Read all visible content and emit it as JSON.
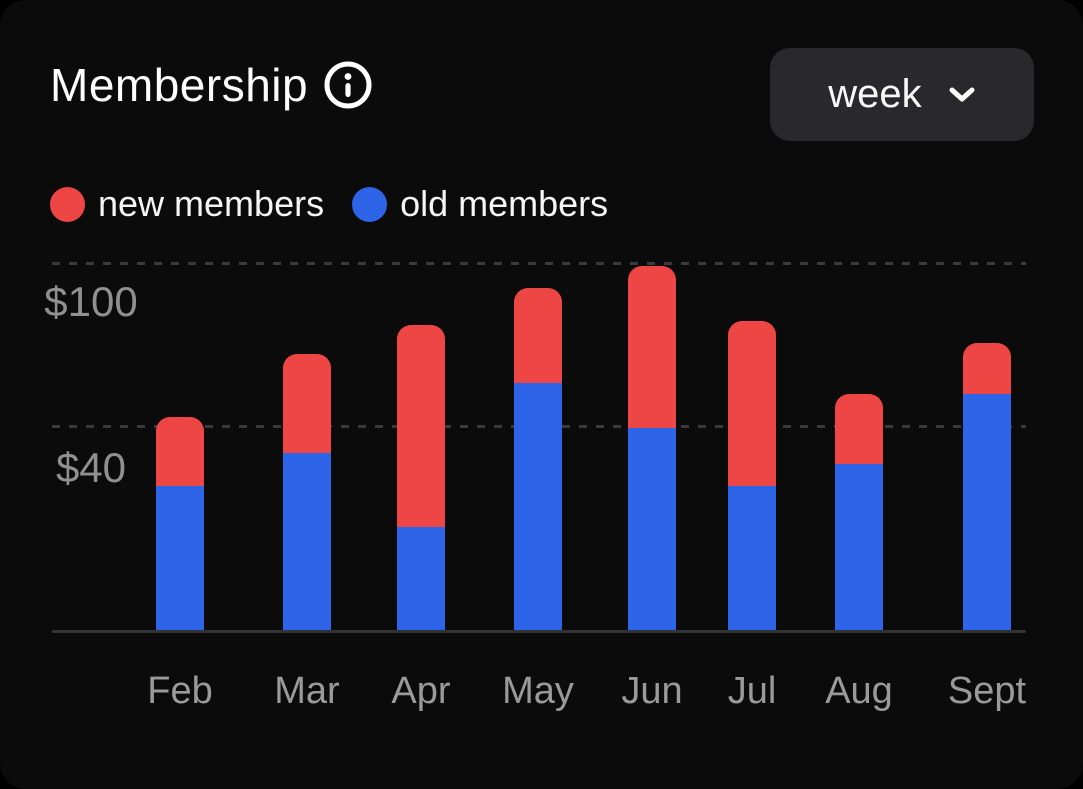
{
  "header": {
    "title": "Membership",
    "period_selector": {
      "value": "week"
    }
  },
  "legend": {
    "items": [
      {
        "label": "new members",
        "color": "#ee4545"
      },
      {
        "label": "old members",
        "color": "#2e64e8"
      }
    ]
  },
  "chart_data": {
    "type": "bar",
    "stacked": true,
    "title": "Membership",
    "categories": [
      "Feb",
      "Mar",
      "Apr",
      "May",
      "Jun",
      "Jul",
      "Aug",
      "Sept"
    ],
    "series": [
      {
        "name": "old members",
        "color": "#2e64e8",
        "values": [
          39,
          48,
          28,
          67,
          55,
          39,
          45,
          64
        ]
      },
      {
        "name": "new members",
        "color": "#ee4545",
        "values": [
          19,
          27,
          55,
          26,
          44,
          45,
          19,
          14
        ]
      }
    ],
    "y_ticks": [
      {
        "label": "$40",
        "value": 40
      },
      {
        "label": "$100",
        "value": 100
      }
    ],
    "ylim": [
      0,
      110
    ],
    "currency": "$",
    "grid": "dashed-horizontal",
    "legend_position": "top-left",
    "x_axis_line": true
  },
  "colors": {
    "card_background": "#0b0b0c",
    "new_members": "#ee4545",
    "old_members": "#2e64e8",
    "gridline": "#3a3a3c",
    "axis_line": "#313335",
    "tick_text": "#909090",
    "month_text": "#9a9a9a",
    "title_text": "#fcfcfc",
    "dropdown_background": "#29292b"
  }
}
